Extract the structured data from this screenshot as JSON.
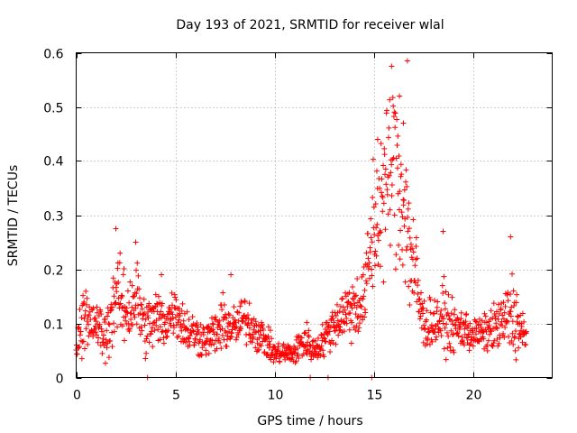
{
  "chart_data": {
    "type": "scatter",
    "title": "Day 193 of 2021, SRMTID for receiver wlal",
    "xlabel": "GPS time / hours",
    "ylabel": "SRMTID / TECUs",
    "xlim": [
      0,
      24
    ],
    "ylim": [
      0,
      0.6
    ],
    "x_ticks": [
      0,
      5,
      10,
      15,
      20
    ],
    "y_ticks": [
      0,
      0.1,
      0.2,
      0.3,
      0.4,
      0.5,
      0.6
    ],
    "x_tick_labels": [
      "0",
      "5",
      "10",
      "15",
      "20"
    ],
    "y_tick_labels": [
      "0",
      "0.1",
      "0.2",
      "0.3",
      "0.4",
      "0.5",
      "0.6"
    ],
    "grid": true,
    "marker": "+",
    "color": "#ff0000",
    "series": [
      {
        "name": "SRMTID",
        "profile": [
          [
            0.0,
            0.06,
            0.015
          ],
          [
            0.5,
            0.12,
            0.03
          ],
          [
            1.0,
            0.1,
            0.02
          ],
          [
            1.5,
            0.07,
            0.025
          ],
          [
            2.0,
            0.16,
            0.04
          ],
          [
            2.5,
            0.12,
            0.03
          ],
          [
            3.0,
            0.15,
            0.04
          ],
          [
            3.5,
            0.09,
            0.025
          ],
          [
            4.0,
            0.11,
            0.03
          ],
          [
            4.5,
            0.1,
            0.02
          ],
          [
            5.0,
            0.13,
            0.025
          ],
          [
            5.5,
            0.09,
            0.02
          ],
          [
            6.0,
            0.08,
            0.02
          ],
          [
            6.5,
            0.07,
            0.015
          ],
          [
            7.0,
            0.08,
            0.02
          ],
          [
            7.5,
            0.1,
            0.025
          ],
          [
            8.0,
            0.09,
            0.02
          ],
          [
            8.5,
            0.11,
            0.02
          ],
          [
            9.0,
            0.09,
            0.02
          ],
          [
            9.5,
            0.07,
            0.015
          ],
          [
            10.0,
            0.045,
            0.01
          ],
          [
            10.5,
            0.045,
            0.01
          ],
          [
            11.0,
            0.045,
            0.01
          ],
          [
            11.5,
            0.07,
            0.02
          ],
          [
            12.0,
            0.05,
            0.01
          ],
          [
            12.5,
            0.07,
            0.015
          ],
          [
            13.0,
            0.1,
            0.02
          ],
          [
            13.5,
            0.12,
            0.025
          ],
          [
            14.0,
            0.13,
            0.03
          ],
          [
            14.5,
            0.14,
            0.03
          ],
          [
            15.0,
            0.28,
            0.07
          ],
          [
            15.5,
            0.34,
            0.07
          ],
          [
            16.0,
            0.4,
            0.08
          ],
          [
            16.5,
            0.33,
            0.08
          ],
          [
            17.0,
            0.2,
            0.06
          ],
          [
            17.5,
            0.1,
            0.025
          ],
          [
            18.0,
            0.1,
            0.02
          ],
          [
            18.5,
            0.11,
            0.03
          ],
          [
            19.0,
            0.09,
            0.02
          ],
          [
            19.5,
            0.09,
            0.02
          ],
          [
            20.0,
            0.08,
            0.015
          ],
          [
            20.5,
            0.08,
            0.015
          ],
          [
            21.0,
            0.09,
            0.02
          ],
          [
            21.5,
            0.1,
            0.025
          ],
          [
            22.0,
            0.12,
            0.04
          ],
          [
            22.5,
            0.08,
            0.02
          ],
          [
            22.7,
            0.07,
            0.015
          ]
        ],
        "peaks": [
          [
            2.0,
            0.275
          ],
          [
            3.0,
            0.25
          ],
          [
            15.9,
            0.575
          ],
          [
            16.7,
            0.585
          ],
          [
            16.3,
            0.52
          ],
          [
            16.5,
            0.47
          ],
          [
            15.2,
            0.44
          ],
          [
            18.5,
            0.27
          ],
          [
            21.9,
            0.26
          ],
          [
            7.8,
            0.19
          ],
          [
            4.3,
            0.19
          ]
        ],
        "zero_points": [
          3.6,
          11.8,
          12.7,
          14.9
        ]
      }
    ]
  }
}
